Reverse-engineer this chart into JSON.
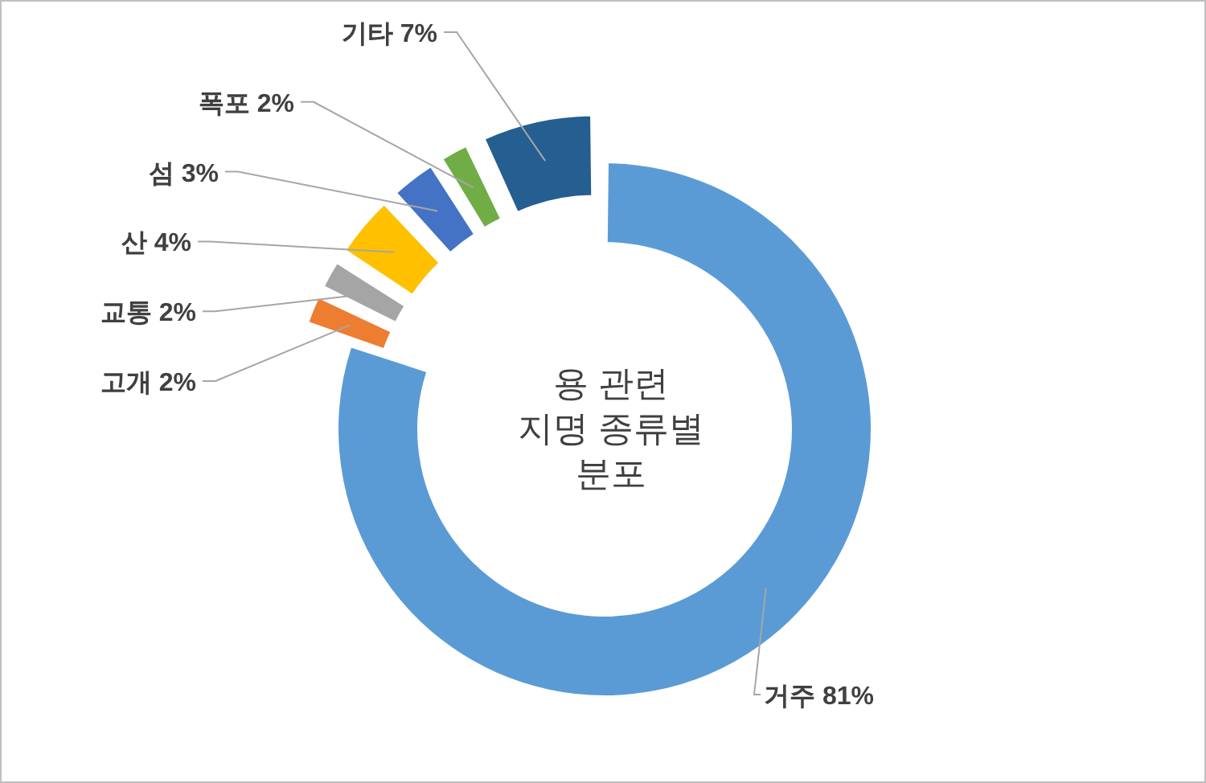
{
  "chart_data": {
    "type": "donut",
    "title": "용 관련 지명 종류별 분포",
    "categories": [
      "거주",
      "고개",
      "교통",
      "산",
      "섬",
      "폭포",
      "기타"
    ],
    "values": [
      81,
      2,
      2,
      4,
      3,
      2,
      7
    ],
    "colors": [
      "#5b9bd5",
      "#ed7d31",
      "#a5a5a5",
      "#ffc000",
      "#4472c4",
      "#70ad47",
      "#255e91"
    ],
    "value_labels": [
      "81%",
      "2%",
      "2%",
      "4%",
      "3%",
      "2%",
      "7%"
    ]
  }
}
